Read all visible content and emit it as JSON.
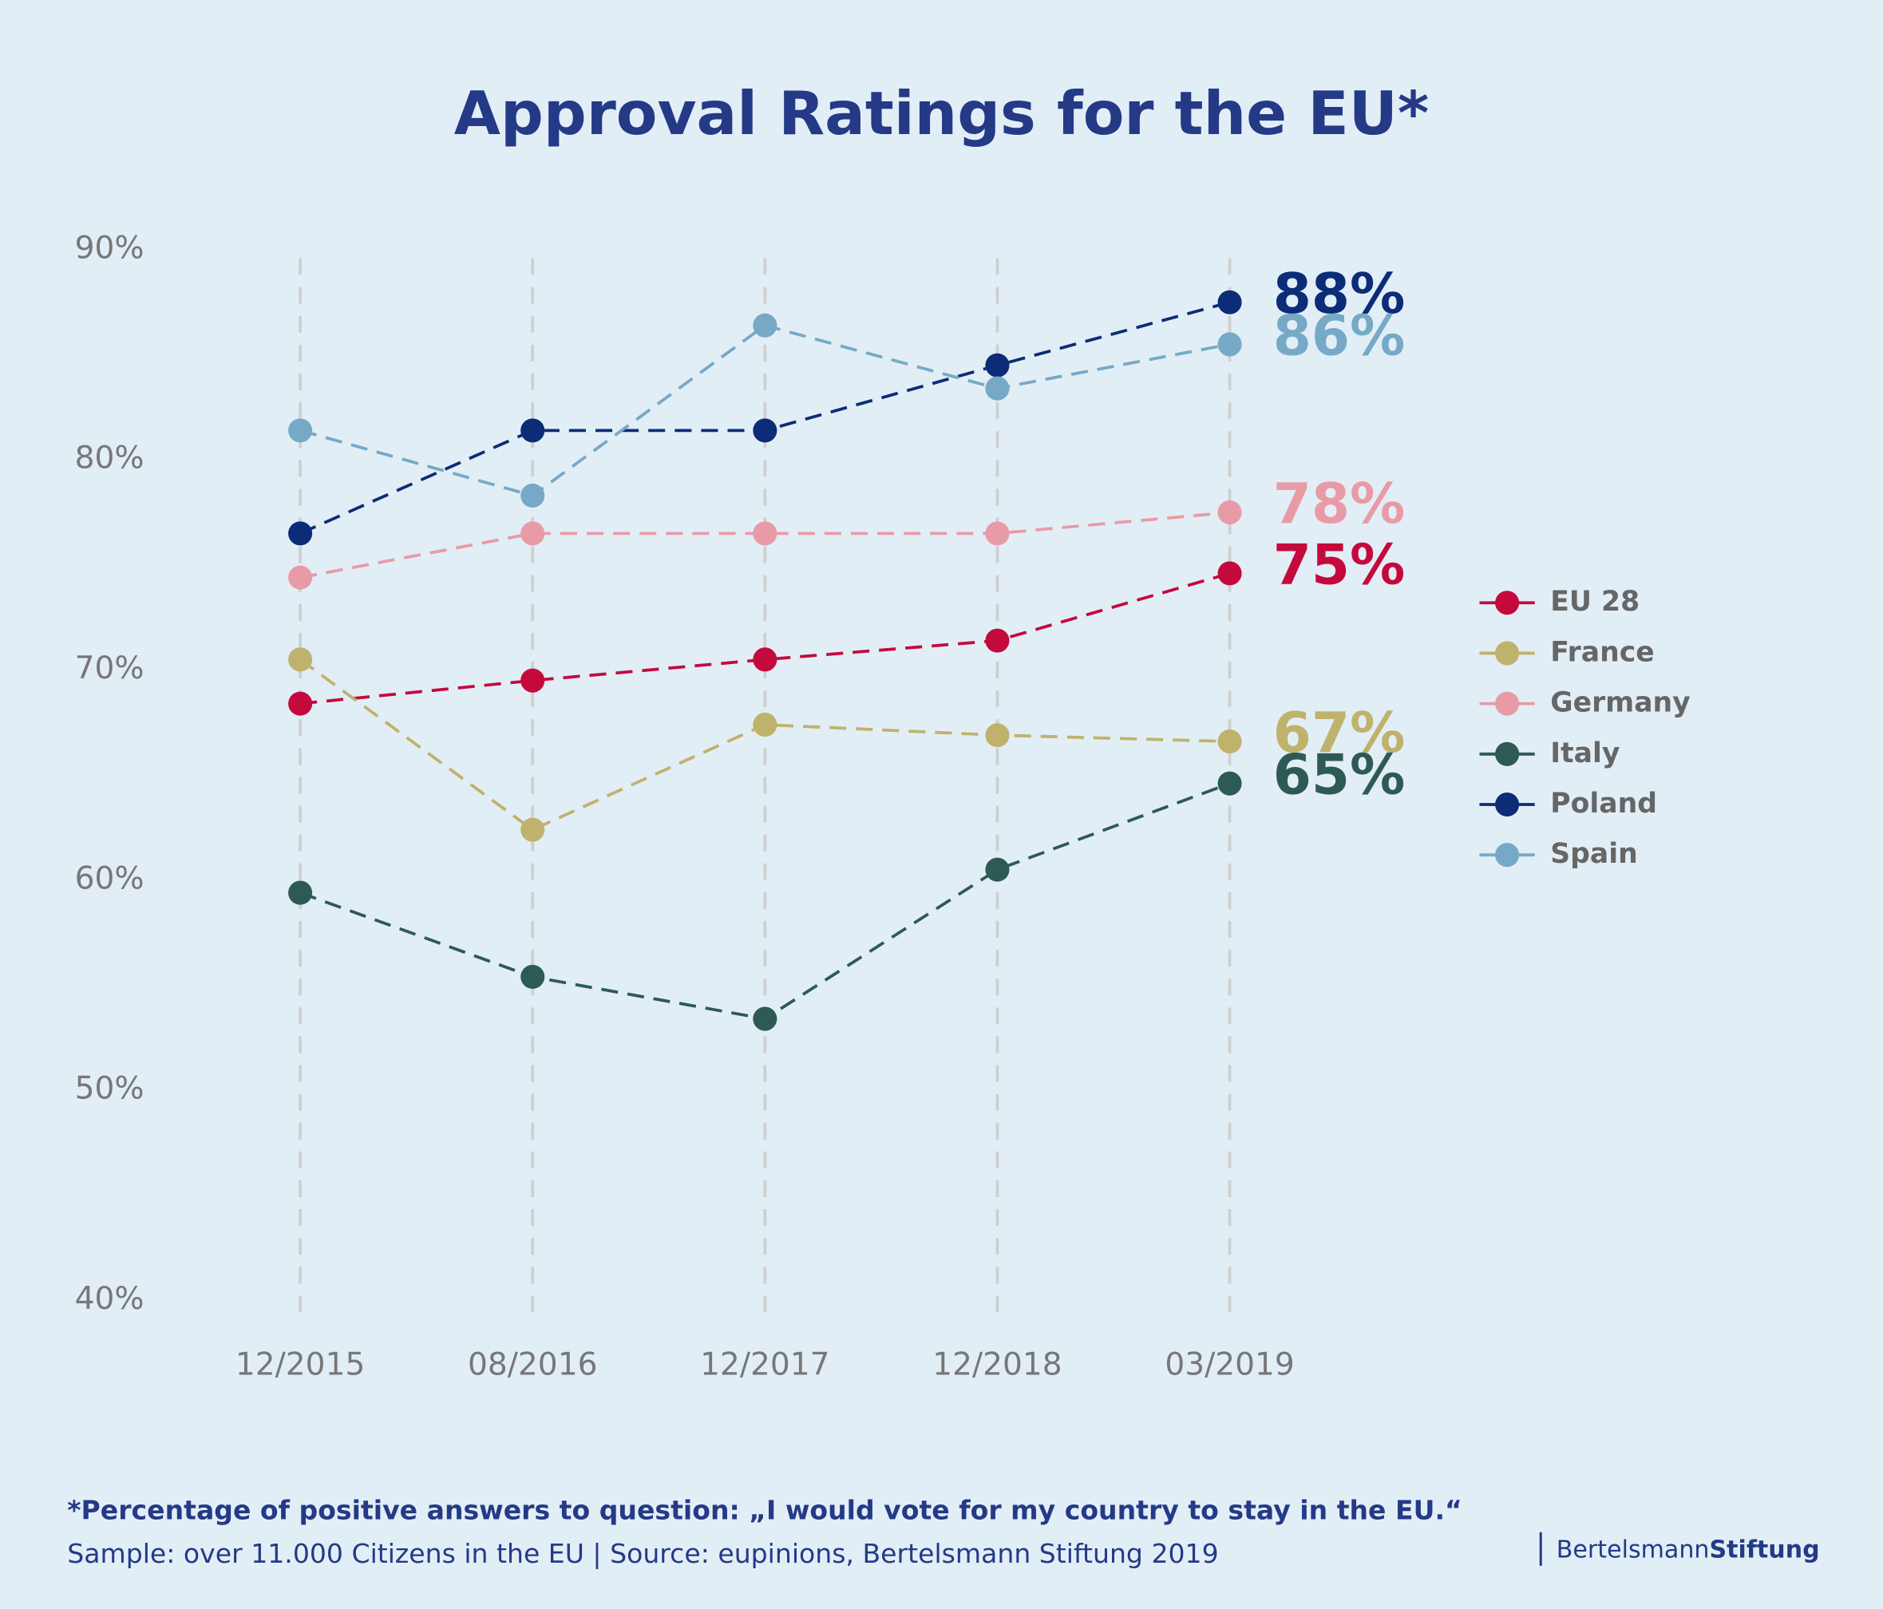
{
  "chart_data": {
    "type": "line",
    "title": "Approval Ratings for the EU*",
    "categories": [
      "12/2015",
      "08/2016",
      "12/2017",
      "12/2018",
      "03/2019"
    ],
    "ylim": [
      40,
      90
    ],
    "yticks": [
      {
        "value": 40,
        "label": "40%"
      },
      {
        "value": 50,
        "label": "50%"
      },
      {
        "value": 60,
        "label": "60%"
      },
      {
        "value": 70,
        "label": "70%"
      },
      {
        "value": 80,
        "label": "80%"
      },
      {
        "value": 90,
        "label": "90%"
      }
    ],
    "grid": true,
    "legend": "right",
    "series": [
      {
        "name": "EU 28",
        "color": "#c40a3d",
        "values": [
          68.4,
          69.5,
          70.5,
          71.4,
          74.6
        ],
        "value_labels": [
          null,
          null,
          null,
          null,
          "75%"
        ]
      },
      {
        "name": "France",
        "color": "#bfb26c",
        "values": [
          70.5,
          62.4,
          67.4,
          66.9,
          66.6
        ],
        "value_labels": [
          null,
          null,
          null,
          null,
          "67%"
        ]
      },
      {
        "name": "Germany",
        "color": "#e89ba6",
        "values": [
          74.4,
          76.5,
          76.5,
          76.5,
          77.5
        ],
        "value_labels": [
          null,
          null,
          null,
          null,
          "78%"
        ]
      },
      {
        "name": "Italy",
        "color": "#2e5a55",
        "values": [
          59.4,
          55.4,
          53.4,
          60.5,
          64.6
        ],
        "value_labels": [
          null,
          null,
          null,
          null,
          "65%"
        ]
      },
      {
        "name": "Poland",
        "color": "#0c2c78",
        "values": [
          76.5,
          81.4,
          81.4,
          84.5,
          87.5
        ],
        "value_labels": [
          null,
          null,
          null,
          null,
          "88%"
        ]
      },
      {
        "name": "Spain",
        "color": "#76a9c6",
        "values": [
          81.4,
          78.3,
          86.4,
          83.4,
          85.5
        ],
        "value_labels": [
          null,
          null,
          null,
          null,
          "86%"
        ]
      }
    ]
  },
  "footer": {
    "note": "*Percentage of positive answers to question: „I would vote for my country to stay in the EU.“",
    "source": "Sample: over 11.000 Citizens in the EU | Source: eupinions, Bertelsmann Stiftung 2019"
  },
  "logo": {
    "first": "Bertelsmann",
    "second": "Stiftung"
  }
}
